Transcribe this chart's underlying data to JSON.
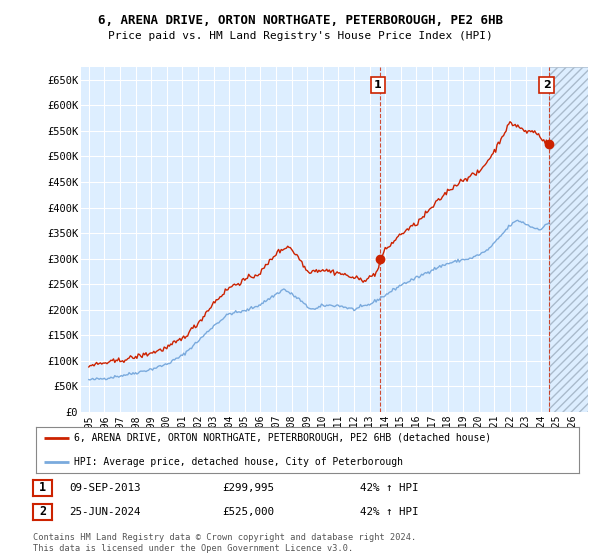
{
  "title_line1": "6, ARENA DRIVE, ORTON NORTHGATE, PETERBOROUGH, PE2 6HB",
  "title_line2": "Price paid vs. HM Land Registry's House Price Index (HPI)",
  "ylim": [
    0,
    675000
  ],
  "yticks": [
    0,
    50000,
    100000,
    150000,
    200000,
    250000,
    300000,
    350000,
    400000,
    450000,
    500000,
    550000,
    600000,
    650000
  ],
  "ytick_labels": [
    "£0",
    "£50K",
    "£100K",
    "£150K",
    "£200K",
    "£250K",
    "£300K",
    "£350K",
    "£400K",
    "£450K",
    "£500K",
    "£550K",
    "£600K",
    "£650K"
  ],
  "xlim_start": 1994.5,
  "xlim_end": 2027.0,
  "xticks": [
    1995,
    1996,
    1997,
    1998,
    1999,
    2000,
    2001,
    2002,
    2003,
    2004,
    2005,
    2006,
    2007,
    2008,
    2009,
    2010,
    2011,
    2012,
    2013,
    2014,
    2015,
    2016,
    2017,
    2018,
    2019,
    2020,
    2021,
    2022,
    2023,
    2024,
    2025,
    2026
  ],
  "hpi_color": "#7aaadd",
  "price_color": "#cc2200",
  "marker_color": "#cc2200",
  "sale1_x": 2013.69,
  "sale1_y": 299995,
  "sale2_x": 2024.49,
  "sale2_y": 525000,
  "sale1_label": "1",
  "sale2_label": "2",
  "vline1_x": 2013.69,
  "vline2_x": 2024.49,
  "legend_line1": "6, ARENA DRIVE, ORTON NORTHGATE, PETERBOROUGH, PE2 6HB (detached house)",
  "legend_line2": "HPI: Average price, detached house, City of Peterborough",
  "annot1_date": "09-SEP-2013",
  "annot1_price": "£299,995",
  "annot1_hpi": "42% ↑ HPI",
  "annot2_date": "25-JUN-2024",
  "annot2_price": "£525,000",
  "annot2_hpi": "42% ↑ HPI",
  "footer": "Contains HM Land Registry data © Crown copyright and database right 2024.\nThis data is licensed under the Open Government Licence v3.0.",
  "bg_color": "#ffffff",
  "plot_bg_color": "#ddeeff",
  "grid_color": "#ffffff",
  "hatch_start": 2024.5,
  "hatch_end": 2027.0
}
